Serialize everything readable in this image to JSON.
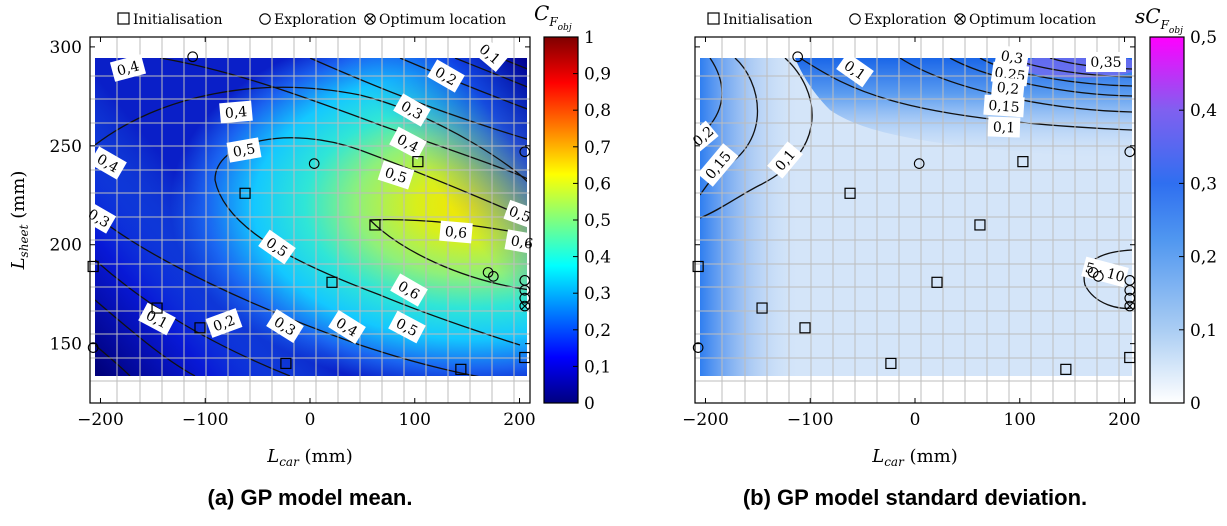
{
  "panels": [
    {
      "id": "mean",
      "legend": [
        "Initialisation",
        "Exploration",
        "Optimum location"
      ],
      "colorbar_title": "C_{F_obj}",
      "colorbar_ticks": [
        "0",
        "0,1",
        "0,2",
        "0,3",
        "0,4",
        "0,5",
        "0,6",
        "0,7",
        "0,8",
        "0,9",
        "1"
      ],
      "caption": "(a) GP model mean."
    },
    {
      "id": "std",
      "legend": [
        "Initialisation",
        "Exploration",
        "Optimum location"
      ],
      "colorbar_title": "sC_{F_obj}",
      "colorbar_ticks": [
        "0",
        "0,1",
        "0,2",
        "0,3",
        "0,4",
        "0,5"
      ],
      "caption": "(b) GP model standard deviation."
    }
  ],
  "colors": {
    "jet": [
      "#00007f",
      "#0000ff",
      "#007fff",
      "#00ffff",
      "#7fff7f",
      "#ffff00",
      "#ff7f00",
      "#ff0000",
      "#7f0000"
    ],
    "std_map": [
      "#ffffff",
      "#aacdf3",
      "#2f88f0",
      "#8060f0",
      "#ff00ff"
    ]
  },
  "chart_data": [
    {
      "type": "heatmap",
      "title": "",
      "xlabel": "L_car (mm)",
      "ylabel": "L_sheet (mm)",
      "xlim": [
        -210,
        210
      ],
      "ylim": [
        120,
        305
      ],
      "xticks": [
        -200,
        -100,
        0,
        100,
        200
      ],
      "xtick_labels": [
        "−200",
        "−100",
        "0",
        "100",
        "200"
      ],
      "yticks": [
        150,
        200,
        250,
        300
      ],
      "ytick_labels": [
        "150",
        "200",
        "250",
        "300"
      ],
      "grid": true,
      "legend_position": "top",
      "colorbar_range": [
        0,
        1
      ],
      "contour_labels": [
        "0,1",
        "0,2",
        "0,3",
        "0,4",
        "0,5",
        "0,6"
      ],
      "initialisation_points": [
        {
          "x": -207,
          "y": 189
        },
        {
          "x": -146,
          "y": 168
        },
        {
          "x": -105,
          "y": 158
        },
        {
          "x": -62,
          "y": 226
        },
        {
          "x": -23,
          "y": 140
        },
        {
          "x": 21,
          "y": 181
        },
        {
          "x": 62,
          "y": 210
        },
        {
          "x": 103,
          "y": 242
        },
        {
          "x": 144,
          "y": 137
        },
        {
          "x": 205,
          "y": 143
        }
      ],
      "exploration_points": [
        {
          "x": -112,
          "y": 295
        },
        {
          "x": 4,
          "y": 241
        },
        {
          "x": 170,
          "y": 186
        },
        {
          "x": 175,
          "y": 184
        },
        {
          "x": 205,
          "y": 247
        },
        {
          "x": 205,
          "y": 182
        },
        {
          "x": 205,
          "y": 177
        },
        {
          "x": 205,
          "y": 173
        },
        {
          "x": -207,
          "y": 148
        }
      ],
      "optimum_location": {
        "x": 205,
        "y": 169
      }
    },
    {
      "type": "heatmap",
      "title": "",
      "xlabel": "L_car (mm)",
      "ylabel": "",
      "xlim": [
        -210,
        210
      ],
      "ylim": [
        120,
        305
      ],
      "xticks": [
        -200,
        -100,
        0,
        100,
        200
      ],
      "xtick_labels": [
        "−200",
        "−100",
        "0",
        "100",
        "200"
      ],
      "yticks": [
        150,
        200,
        250,
        300
      ],
      "grid": true,
      "legend_position": "top",
      "colorbar_range": [
        0,
        0.5
      ],
      "contour_labels": [
        "0,1",
        "0,15",
        "0,2",
        "0,25",
        "0,3",
        "0,35",
        "5 · 10"
      ],
      "initialisation_points": [
        {
          "x": -207,
          "y": 189
        },
        {
          "x": -146,
          "y": 168
        },
        {
          "x": -105,
          "y": 158
        },
        {
          "x": -62,
          "y": 226
        },
        {
          "x": -23,
          "y": 140
        },
        {
          "x": 21,
          "y": 181
        },
        {
          "x": 62,
          "y": 210
        },
        {
          "x": 103,
          "y": 242
        },
        {
          "x": 144,
          "y": 137
        },
        {
          "x": 205,
          "y": 143
        }
      ],
      "exploration_points": [
        {
          "x": -112,
          "y": 295
        },
        {
          "x": 4,
          "y": 241
        },
        {
          "x": 170,
          "y": 186
        },
        {
          "x": 175,
          "y": 184
        },
        {
          "x": 205,
          "y": 247
        },
        {
          "x": 205,
          "y": 182
        },
        {
          "x": 205,
          "y": 177
        },
        {
          "x": 205,
          "y": 173
        },
        {
          "x": -207,
          "y": 148
        }
      ],
      "optimum_location": {
        "x": 205,
        "y": 169
      }
    }
  ]
}
